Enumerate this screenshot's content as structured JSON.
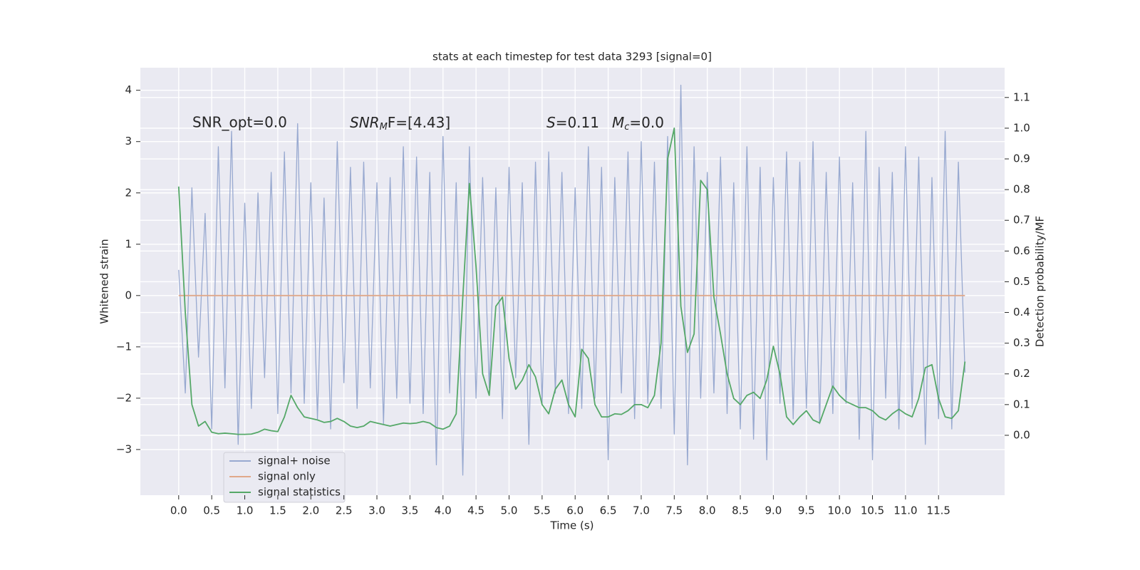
{
  "chart_data": {
    "type": "line",
    "title": "stats at each timestep for test data 3293 [signal=0]",
    "xlabel": "Time (s)",
    "ylabel": "Whitened strain",
    "y2label": "Detection probability/MF",
    "annotations": [
      {
        "text": "SNR_opt=0.0"
      },
      {
        "main": "SNR",
        "sub": "M",
        "rest": "F=[4.43]"
      },
      {
        "main": "S",
        "rest": "=0.11"
      },
      {
        "main": "M",
        "sub": "c",
        "rest": "=0.0"
      }
    ],
    "xlim": [
      -0.58,
      12.5
    ],
    "ylim": [
      -3.89,
      4.44
    ],
    "y2lim": [
      -0.195,
      1.197
    ],
    "xticks": [
      {
        "value": 0,
        "label": "0.0"
      },
      0.5,
      {
        "value": 1,
        "label": "1.0"
      },
      1.5,
      {
        "value": 2,
        "label": "2.0"
      },
      2.5,
      {
        "value": 3,
        "label": "3.0"
      },
      3.5,
      {
        "value": 4,
        "label": "4.0"
      },
      4.5,
      {
        "value": 5,
        "label": "5.0"
      },
      5.5,
      {
        "value": 6,
        "label": "6.0"
      },
      6.5,
      {
        "value": 7,
        "label": "7.0"
      },
      7.5,
      {
        "value": 8,
        "label": "8.0"
      },
      8.5,
      {
        "value": 9,
        "label": "9.0"
      },
      9.5,
      {
        "value": 10,
        "label": "10.0"
      },
      10.5,
      {
        "value": 11,
        "label": "11.0"
      },
      11.5
    ],
    "yticks": [
      {
        "value": -3,
        "label": "−3"
      },
      {
        "value": -2,
        "label": "−2"
      },
      {
        "value": -1,
        "label": "−1"
      },
      0,
      1,
      2,
      3,
      4
    ],
    "y2ticks": [
      {
        "value": 0,
        "label": "0.0"
      },
      0.1,
      0.2,
      0.3,
      0.4,
      0.5,
      0.6,
      0.7,
      0.8,
      0.9,
      {
        "value": 1,
        "label": "1.0"
      },
      1.1
    ],
    "grid": true,
    "legend": "lower left",
    "x": [
      0,
      0.1,
      0.2,
      0.3,
      0.4,
      0.5,
      0.6,
      0.7,
      0.8,
      0.9,
      1,
      1.1,
      1.2,
      1.3,
      1.4,
      1.5,
      1.6,
      1.7,
      1.8,
      1.9,
      2,
      2.1,
      2.2,
      2.3,
      2.4,
      2.5,
      2.6,
      2.7,
      2.8,
      2.9,
      3,
      3.1,
      3.2,
      3.3,
      3.4,
      3.5,
      3.6,
      3.7,
      3.8,
      3.9,
      4,
      4.1,
      4.2,
      4.3,
      4.4,
      4.5,
      4.6,
      4.7,
      4.8,
      4.9,
      5,
      5.1,
      5.2,
      5.3,
      5.4,
      5.5,
      5.6,
      5.7,
      5.8,
      5.9,
      6,
      6.1,
      6.2,
      6.3,
      6.4,
      6.5,
      6.6,
      6.7,
      6.8,
      6.9,
      7,
      7.1,
      7.2,
      7.3,
      7.4,
      7.5,
      7.6,
      7.7,
      7.8,
      7.9,
      8,
      8.1,
      8.2,
      8.3,
      8.4,
      8.5,
      8.6,
      8.7,
      8.8,
      8.9,
      9,
      9.1,
      9.2,
      9.3,
      9.4,
      9.5,
      9.6,
      9.7,
      9.8,
      9.9,
      10,
      10.1,
      10.2,
      10.3,
      10.4,
      10.5,
      10.6,
      10.7,
      10.8,
      10.9,
      11,
      11.1,
      11.2,
      11.3,
      11.4,
      11.5,
      11.6,
      11.7,
      11.8,
      11.9
    ],
    "series": [
      {
        "name": "signal+ noise",
        "color": "#98a9d0",
        "axis": "y",
        "values": [
          0.5,
          -1.9,
          2.1,
          -1.2,
          1.6,
          -2.6,
          2.9,
          -1.8,
          3.2,
          -2.9,
          1.8,
          -2.2,
          2.0,
          -1.6,
          2.4,
          -2.3,
          2.8,
          -1.9,
          3.35,
          -2.1,
          2.2,
          -2.4,
          1.9,
          -2.6,
          3.0,
          -1.7,
          2.5,
          -2.2,
          2.6,
          -1.8,
          2.2,
          -2.5,
          2.3,
          -2.0,
          2.9,
          -2.1,
          2.7,
          -2.3,
          2.4,
          -3.3,
          3.1,
          -1.9,
          2.2,
          -3.5,
          2.9,
          -2.0,
          2.3,
          -1.8,
          2.1,
          -2.4,
          2.5,
          -1.6,
          2.2,
          -2.9,
          2.6,
          -2.1,
          2.8,
          -1.9,
          2.4,
          -2.3,
          2.1,
          -2.2,
          2.9,
          -2.0,
          2.5,
          -3.2,
          2.3,
          -1.9,
          2.8,
          -2.4,
          3.0,
          -2.1,
          2.6,
          -2.2,
          3.1,
          -2.7,
          4.1,
          -3.3,
          2.9,
          -2.0,
          2.4,
          -1.9,
          2.7,
          -2.3,
          2.2,
          -2.6,
          2.9,
          -2.8,
          2.5,
          -3.2,
          2.3,
          -2.1,
          2.8,
          -2.4,
          2.6,
          -2.2,
          3.0,
          -2.5,
          2.4,
          -2.3,
          2.7,
          -2.1,
          2.2,
          -2.8,
          3.2,
          -3.2,
          2.5,
          -2.0,
          2.4,
          -2.6,
          2.9,
          -2.2,
          2.7,
          -2.9,
          2.3,
          -2.4,
          3.2,
          -2.6,
          2.6,
          -1.5
        ]
      },
      {
        "name": "signal only",
        "color": "#e0a88a",
        "axis": "y",
        "values": [
          0,
          0,
          0,
          0,
          0,
          0,
          0,
          0,
          0,
          0,
          0,
          0,
          0,
          0,
          0,
          0,
          0,
          0,
          0,
          0,
          0,
          0,
          0,
          0,
          0,
          0,
          0,
          0,
          0,
          0,
          0,
          0,
          0,
          0,
          0,
          0,
          0,
          0,
          0,
          0,
          0,
          0,
          0,
          0,
          0,
          0,
          0,
          0,
          0,
          0,
          0,
          0,
          0,
          0,
          0,
          0,
          0,
          0,
          0,
          0,
          0,
          0,
          0,
          0,
          0,
          0,
          0,
          0,
          0,
          0,
          0,
          0,
          0,
          0,
          0,
          0,
          0,
          0,
          0,
          0,
          0,
          0,
          0,
          0,
          0,
          0,
          0,
          0,
          0,
          0,
          0,
          0,
          0,
          0,
          0,
          0,
          0,
          0,
          0,
          0,
          0,
          0,
          0,
          0,
          0,
          0,
          0,
          0,
          0,
          0,
          0,
          0,
          0,
          0,
          0,
          0,
          0,
          0,
          0,
          0
        ]
      },
      {
        "name": "signal statistics",
        "color": "#55a868",
        "axis": "y2",
        "values": [
          0.81,
          0.4,
          0.1,
          0.03,
          0.045,
          0.01,
          0.005,
          0.007,
          0.005,
          0.003,
          0.003,
          0.004,
          0.01,
          0.02,
          0.015,
          0.012,
          0.06,
          0.13,
          0.09,
          0.06,
          0.055,
          0.05,
          0.042,
          0.045,
          0.055,
          0.045,
          0.03,
          0.025,
          0.03,
          0.045,
          0.04,
          0.035,
          0.03,
          0.035,
          0.04,
          0.038,
          0.04,
          0.045,
          0.04,
          0.025,
          0.02,
          0.03,
          0.07,
          0.45,
          0.82,
          0.55,
          0.2,
          0.13,
          0.42,
          0.45,
          0.25,
          0.15,
          0.18,
          0.23,
          0.19,
          0.1,
          0.07,
          0.15,
          0.18,
          0.1,
          0.06,
          0.28,
          0.25,
          0.1,
          0.06,
          0.06,
          0.07,
          0.068,
          0.08,
          0.1,
          0.1,
          0.09,
          0.13,
          0.3,
          0.9,
          1.0,
          0.42,
          0.27,
          0.33,
          0.83,
          0.8,
          0.45,
          0.33,
          0.2,
          0.12,
          0.1,
          0.13,
          0.14,
          0.12,
          0.18,
          0.29,
          0.2,
          0.06,
          0.035,
          0.06,
          0.08,
          0.05,
          0.04,
          0.1,
          0.16,
          0.13,
          0.11,
          0.1,
          0.09,
          0.09,
          0.08,
          0.06,
          0.05,
          0.07,
          0.085,
          0.07,
          0.06,
          0.12,
          0.22,
          0.23,
          0.12,
          0.06,
          0.055,
          0.08,
          0.24
        ]
      }
    ]
  }
}
